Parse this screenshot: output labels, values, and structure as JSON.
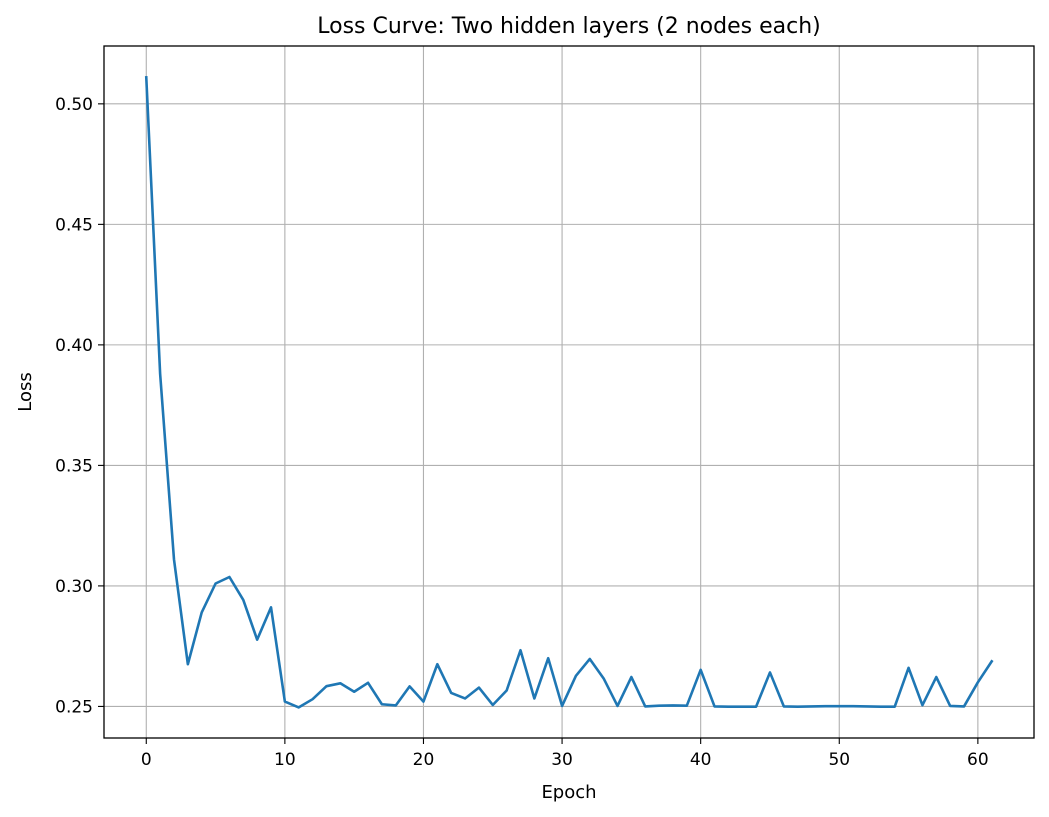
{
  "chart_data": {
    "type": "line",
    "title": "Loss Curve: Two hidden layers (2 nodes each)",
    "xlabel": "Epoch",
    "ylabel": "Loss",
    "xlim": [
      -3.05,
      64.05
    ],
    "ylim": [
      0.2369,
      0.524
    ],
    "xticks": [
      0,
      10,
      20,
      30,
      40,
      50,
      60
    ],
    "xtick_labels": [
      "0",
      "10",
      "20",
      "30",
      "40",
      "50",
      "60"
    ],
    "yticks": [
      0.25,
      0.3,
      0.35,
      0.4,
      0.45,
      0.5
    ],
    "ytick_labels": [
      "0.25",
      "0.30",
      "0.35",
      "0.40",
      "0.45",
      "0.50"
    ],
    "grid": true,
    "colors": {
      "line": "#1f77b4",
      "grid": "#b0b0b0",
      "axes": "#000000"
    },
    "series": [
      {
        "x": [
          0,
          1,
          2,
          3,
          4,
          5,
          6,
          7,
          8,
          9,
          10,
          11,
          12,
          13,
          14,
          15,
          16,
          17,
          18,
          19,
          20,
          21,
          22,
          23,
          24,
          25,
          26,
          27,
          28,
          29,
          30,
          31,
          32,
          33,
          34,
          35,
          36,
          37,
          38,
          39,
          40,
          41,
          42,
          43,
          44,
          45,
          46,
          47,
          48,
          49,
          50,
          51,
          52,
          53,
          54,
          55,
          56,
          57,
          58,
          59,
          60,
          61
        ],
        "values": [
          0.511,
          0.388,
          0.311,
          0.2675,
          0.289,
          0.301,
          0.3037,
          0.2942,
          0.2777,
          0.2911,
          0.252,
          0.2496,
          0.253,
          0.2584,
          0.2596,
          0.2561,
          0.2598,
          0.2509,
          0.2504,
          0.2583,
          0.252,
          0.2675,
          0.2556,
          0.2533,
          0.2578,
          0.2506,
          0.2566,
          0.2733,
          0.2533,
          0.27,
          0.2502,
          0.2627,
          0.2697,
          0.2616,
          0.2502,
          0.2622,
          0.25,
          0.2503,
          0.2504,
          0.2503,
          0.2652,
          0.25,
          0.2499,
          0.2499,
          0.2499,
          0.2641,
          0.25,
          0.2499,
          0.25,
          0.2501,
          0.2501,
          0.2501,
          0.25,
          0.2499,
          0.2499,
          0.266,
          0.2505,
          0.2622,
          0.2502,
          0.25,
          0.26,
          0.2687
        ]
      }
    ]
  }
}
